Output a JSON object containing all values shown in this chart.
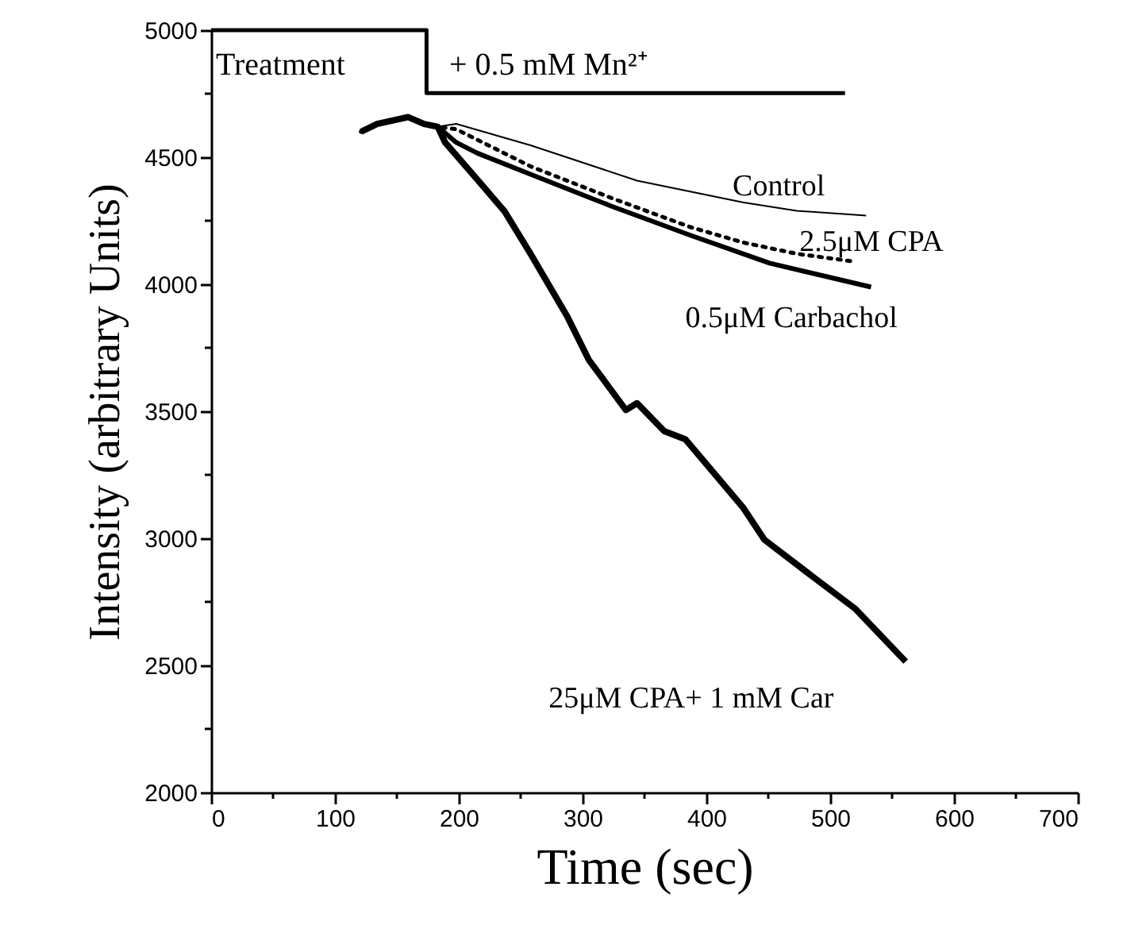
{
  "chart_data": {
    "type": "line",
    "xlabel": "Time (sec)",
    "ylabel": "Intensity (arbitrary Units)",
    "xlim": [
      0,
      700
    ],
    "ylim": [
      2000,
      5000
    ],
    "xticks": [
      0,
      {
        "value": 50,
        "label": null
      },
      100,
      {
        "value": 150,
        "label": null
      },
      200,
      {
        "value": 250,
        "label": null
      },
      300,
      {
        "value": 350,
        "label": null
      },
      400,
      {
        "value": 450,
        "label": null
      },
      500,
      {
        "value": 550,
        "label": null
      },
      600,
      {
        "value": 650,
        "label": null
      },
      700
    ],
    "yticks": [
      2000,
      {
        "value": 2250,
        "label": null
      },
      2500,
      {
        "value": 2750,
        "label": null
      },
      3000,
      {
        "value": 3250,
        "label": null
      },
      3500,
      {
        "value": 3750,
        "label": null
      },
      4000,
      {
        "value": 4250,
        "label": null
      },
      4500,
      {
        "value": 4750,
        "label": null
      },
      5000
    ],
    "grid": false,
    "legend": false,
    "marker": "none",
    "series": [
      {
        "type": "step",
        "color": "#000000",
        "line_style": "solid",
        "x": [
          0,
          174,
          512
        ],
        "values": [
          5000,
          4752,
          4752
        ]
      },
      {
        "name": "Control",
        "color": "#000000",
        "line_style": "solid",
        "x": [
          121,
          134,
          159,
          172,
          183,
          198,
          258,
          344,
          430,
          473,
          529
        ],
        "values": [
          4600,
          4631,
          4658,
          4631,
          4620,
          4631,
          4547,
          4408,
          4322,
          4289,
          4270
        ]
      },
      {
        "name": "2.5μM CPA",
        "color": "#000000",
        "line_style": "dotted",
        "x": [
          121,
          134,
          159,
          172,
          183,
          198,
          258,
          323,
          387,
          430,
          473,
          520
        ],
        "values": [
          4600,
          4631,
          4658,
          4631,
          4620,
          4610,
          4464,
          4340,
          4225,
          4164,
          4120,
          4089
        ]
      },
      {
        "name": "0.5μM Carbachol",
        "color": "#000000",
        "line_style": "solid",
        "x": [
          121,
          134,
          159,
          172,
          183,
          198,
          215,
          258,
          323,
          387,
          451,
          533
        ],
        "values": [
          4600,
          4631,
          4658,
          4631,
          4620,
          4558,
          4516,
          4433,
          4308,
          4193,
          4083,
          3989
        ]
      },
      {
        "name": "25μM CPA+ 1 mM Car",
        "color": "#000000",
        "line_style": "solid",
        "x": [
          121,
          134,
          159,
          172,
          183,
          189,
          215,
          237,
          258,
          288,
          305,
          335,
          344,
          366,
          383,
          430,
          447,
          486,
          520,
          561
        ],
        "values": [
          4600,
          4631,
          4658,
          4631,
          4620,
          4558,
          4412,
          4287,
          4120,
          3870,
          3703,
          3505,
          3532,
          3422,
          3390,
          3119,
          2994,
          2849,
          2724,
          2515
        ]
      }
    ],
    "annotations": [
      "Treatment",
      "+ 0.5 mM Mn²⁺"
    ]
  }
}
